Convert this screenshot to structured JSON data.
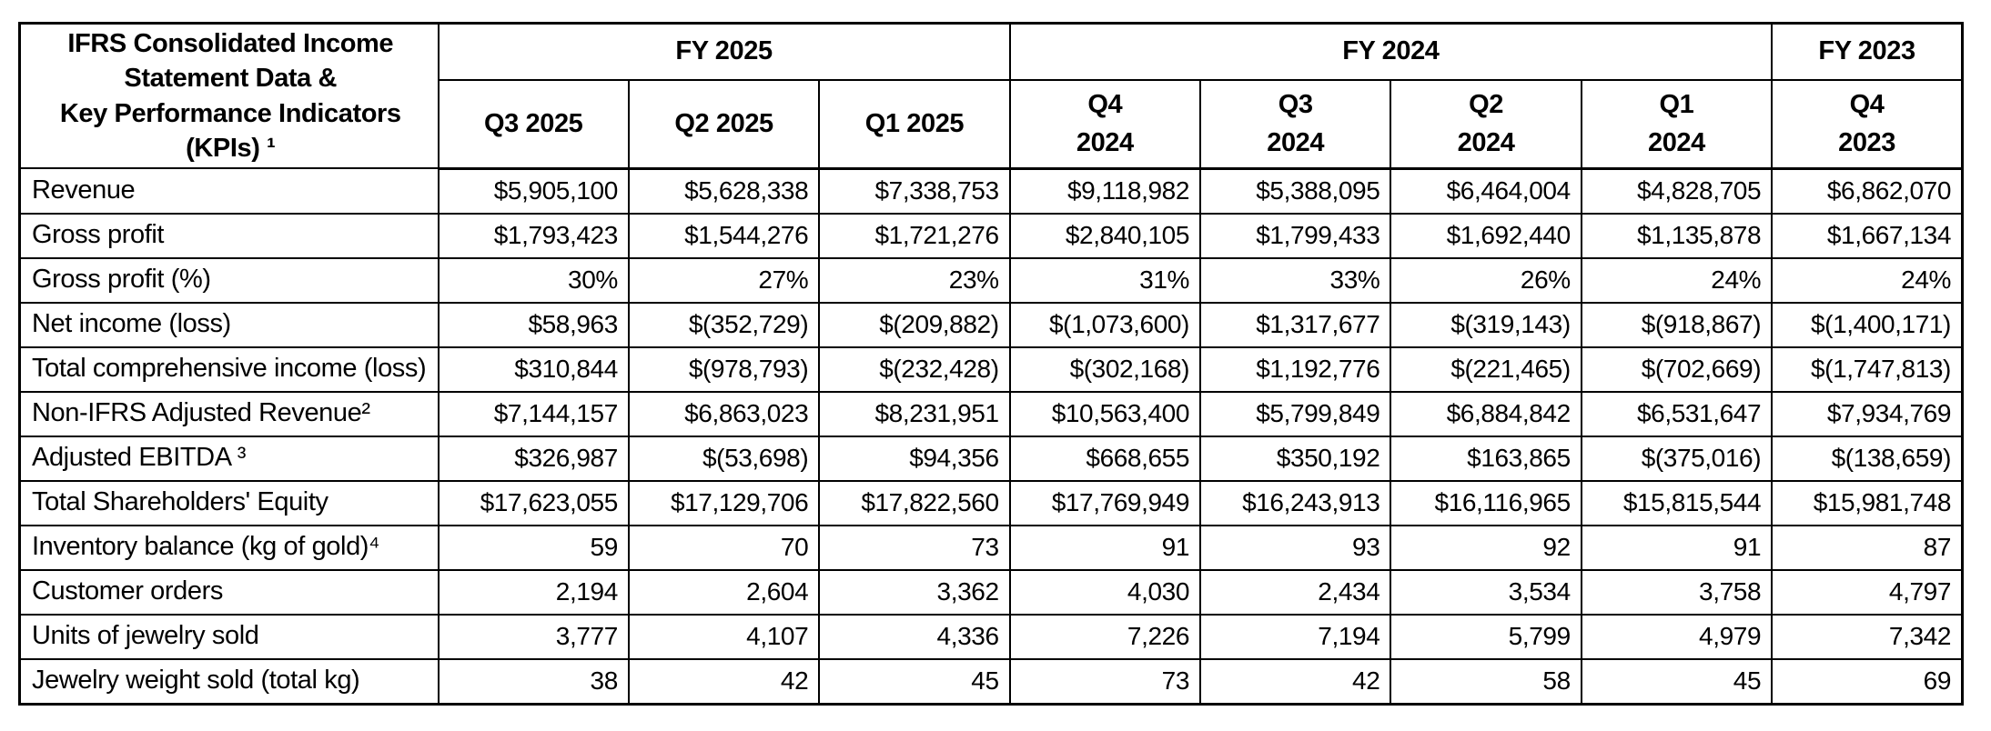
{
  "table": {
    "title": "IFRS Consolidated Income\nStatement Data &\nKey Performance Indicators\n(KPIs) ¹",
    "year_groups": [
      {
        "label": "FY 2025",
        "colspan": 3
      },
      {
        "label": "FY 2024",
        "colspan": 4
      },
      {
        "label": "FY 2023",
        "colspan": 1
      }
    ],
    "quarters": [
      "Q3 2025",
      "Q2 2025",
      "Q1 2025",
      "Q4\n2024",
      "Q3\n2024",
      "Q2\n2024",
      "Q1\n2024",
      "Q4\n2023"
    ],
    "rows": [
      {
        "label": "Revenue",
        "values": [
          "$5,905,100",
          "$5,628,338",
          "$7,338,753",
          "$9,118,982",
          "$5,388,095",
          "$6,464,004",
          "$4,828,705",
          "$6,862,070"
        ]
      },
      {
        "label": "Gross profit",
        "values": [
          "$1,793,423",
          "$1,544,276",
          "$1,721,276",
          "$2,840,105",
          "$1,799,433",
          "$1,692,440",
          "$1,135,878",
          "$1,667,134"
        ]
      },
      {
        "label": "Gross profit (%)",
        "values": [
          "30%",
          "27%",
          "23%",
          "31%",
          "33%",
          "26%",
          "24%",
          "24%"
        ]
      },
      {
        "label": "Net income (loss)",
        "values": [
          "$58,963",
          "$(352,729)",
          "$(209,882)",
          "$(1,073,600)",
          "$1,317,677",
          "$(319,143)",
          "$(918,867)",
          "$(1,400,171)"
        ]
      },
      {
        "label": "Total comprehensive income (loss)",
        "values": [
          "$310,844",
          "$(978,793)",
          "$(232,428)",
          "$(302,168)",
          "$1,192,776",
          "$(221,465)",
          "$(702,669)",
          "$(1,747,813)"
        ]
      },
      {
        "label": "Non-IFRS Adjusted Revenue²",
        "values": [
          "$7,144,157",
          "$6,863,023",
          "$8,231,951",
          "$10,563,400",
          "$5,799,849",
          "$6,884,842",
          "$6,531,647",
          "$7,934,769"
        ]
      },
      {
        "label": "Adjusted EBITDA ³",
        "values": [
          "$326,987",
          "$(53,698)",
          "$94,356",
          "$668,655",
          "$350,192",
          "$163,865",
          "$(375,016)",
          "$(138,659)"
        ]
      },
      {
        "label": "Total Shareholders' Equity",
        "values": [
          "$17,623,055",
          "$17,129,706",
          "$17,822,560",
          "$17,769,949",
          "$16,243,913",
          "$16,116,965",
          "$15,815,544",
          "$15,981,748"
        ]
      },
      {
        "label": "Inventory balance (kg of gold)⁴",
        "values": [
          "59",
          "70",
          "73",
          "91",
          "93",
          "92",
          "91",
          "87"
        ]
      },
      {
        "label": "Customer orders",
        "values": [
          "2,194",
          "2,604",
          "3,362",
          "4,030",
          "2,434",
          "3,534",
          "3,758",
          "4,797"
        ]
      },
      {
        "label": "Units of jewelry sold",
        "values": [
          "3,777",
          "4,107",
          "4,336",
          "7,226",
          "7,194",
          "5,799",
          "4,979",
          "7,342"
        ]
      },
      {
        "label": "Jewelry weight sold (total kg)",
        "values": [
          "38",
          "42",
          "45",
          "73",
          "42",
          "58",
          "45",
          "69"
        ]
      }
    ]
  }
}
